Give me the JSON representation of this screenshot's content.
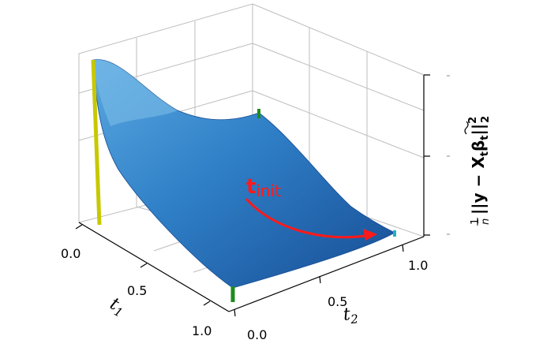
{
  "chart_data": {
    "type": "surface3d",
    "x_axis": {
      "label": "t",
      "label_sub": "1",
      "ticks": [
        "0.0",
        "0.5",
        "1.0"
      ],
      "range": [
        0,
        1
      ]
    },
    "y_axis": {
      "label": "t",
      "label_sub": "2",
      "ticks": [
        "0.0",
        "0.5",
        "1.0"
      ],
      "range": [
        0,
        1
      ]
    },
    "z_axis": {
      "label": "1/n ||y − X_t β̃_t||²₂",
      "label_frac_num": "1",
      "label_frac_den": "n",
      "label_body": "||y − X",
      "label_sub": "t",
      "label_beta": "β",
      "label_beta_sub": "t",
      "label_tail": "||",
      "label_sup": "2",
      "label_sub2": "2",
      "ticks": [
        "",
        "",
        ""
      ]
    },
    "surface_color": "#1f5fa8",
    "grid": true,
    "corner_markers": [
      {
        "name": "t1=0,t2=0",
        "color": "#c8c800",
        "z": 1.0
      },
      {
        "name": "t1=0,t2=1",
        "color": "#1e8c1e",
        "z": 0.55
      },
      {
        "name": "t1=1,t2=0",
        "color": "#1e8c1e",
        "z": 0.0
      },
      {
        "name": "t1=1,t2=1",
        "color": "#20b0c8",
        "z": 0.0
      }
    ],
    "annotation": {
      "text_main": "t",
      "text_sub": "init",
      "color": "#ff1a1a"
    }
  }
}
